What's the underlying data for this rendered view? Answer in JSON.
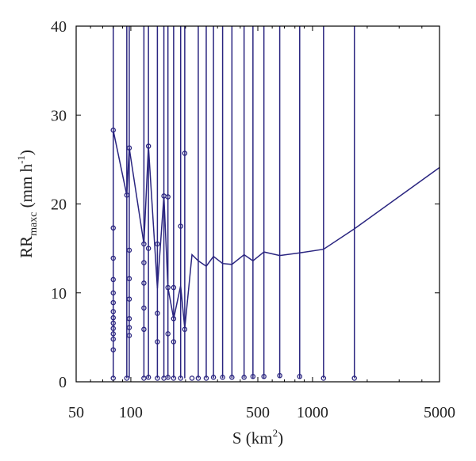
{
  "chart_data": {
    "type": "line",
    "xlabel": "S (km",
    "xlabel_sup": "2",
    "xlabel_end": ")",
    "ylabel": "RR",
    "ylabel_sub": "maxc",
    "ylabel_unit": " (mm h",
    "ylabel_unit_sup": "-1",
    "ylabel_end": ")",
    "x_scale": "log",
    "xlim": [
      50,
      5000
    ],
    "ylim": [
      0,
      40
    ],
    "x_ticks": [
      50,
      100,
      500,
      1000,
      5000
    ],
    "y_ticks": [
      0,
      10,
      20,
      30,
      40
    ],
    "color": "#2a2580",
    "series": [
      {
        "x": [
          80,
          95,
          98,
          118,
          125,
          140,
          152,
          160,
          172,
          188,
          198,
          217,
          235,
          260,
          285,
          320,
          360,
          420,
          470,
          540,
          660,
          850,
          1150,
          1700,
          5000
        ],
        "values": [
          28.3,
          21.0,
          26.3,
          15.5,
          26.5,
          10.5,
          20.9,
          10.6,
          7.1,
          10.8,
          6.0,
          14.3,
          13.6,
          13.0,
          14.1,
          13.3,
          13.2,
          14.3,
          13.6,
          14.6,
          14.2,
          14.5,
          14.9,
          17.2,
          24.1
        ]
      }
    ],
    "vertical_lines_x": [
      80,
      95,
      98,
      118,
      125,
      140,
      152,
      160,
      172,
      188,
      198,
      235,
      260,
      285,
      320,
      360,
      420,
      470,
      540,
      660,
      850,
      1150,
      1700
    ],
    "markers": [
      [
        80,
        28.3
      ],
      [
        80,
        17.3
      ],
      [
        80,
        13.9
      ],
      [
        80,
        11.5
      ],
      [
        80,
        10.0
      ],
      [
        80,
        8.9
      ],
      [
        80,
        7.9
      ],
      [
        80,
        7.2
      ],
      [
        80,
        6.6
      ],
      [
        80,
        6.0
      ],
      [
        80,
        5.4
      ],
      [
        80,
        4.8
      ],
      [
        80,
        3.6
      ],
      [
        80,
        0.4
      ],
      [
        95,
        21.0
      ],
      [
        95,
        0.4
      ],
      [
        98,
        26.3
      ],
      [
        98,
        14.8
      ],
      [
        98,
        11.6
      ],
      [
        98,
        9.3
      ],
      [
        98,
        7.1
      ],
      [
        98,
        6.1
      ],
      [
        98,
        5.2
      ],
      [
        118,
        15.5
      ],
      [
        118,
        13.4
      ],
      [
        118,
        11.1
      ],
      [
        118,
        8.3
      ],
      [
        118,
        5.9
      ],
      [
        118,
        0.4
      ],
      [
        125,
        26.5
      ],
      [
        125,
        15.0
      ],
      [
        125,
        0.5
      ],
      [
        140,
        15.5
      ],
      [
        140,
        7.7
      ],
      [
        140,
        4.5
      ],
      [
        140,
        0.4
      ],
      [
        152,
        20.9
      ],
      [
        152,
        0.4
      ],
      [
        160,
        20.8
      ],
      [
        160,
        10.6
      ],
      [
        160,
        5.4
      ],
      [
        160,
        0.5
      ],
      [
        172,
        10.6
      ],
      [
        172,
        7.1
      ],
      [
        172,
        4.5
      ],
      [
        172,
        0.4
      ],
      [
        188,
        17.5
      ],
      [
        188,
        0.4
      ],
      [
        198,
        25.7
      ],
      [
        198,
        5.9
      ],
      [
        217,
        0.4
      ],
      [
        235,
        0.4
      ],
      [
        260,
        0.4
      ],
      [
        285,
        0.5
      ],
      [
        320,
        0.5
      ],
      [
        360,
        0.5
      ],
      [
        420,
        0.5
      ],
      [
        470,
        0.6
      ],
      [
        540,
        0.6
      ],
      [
        660,
        0.7
      ],
      [
        850,
        0.6
      ],
      [
        1150,
        0.4
      ],
      [
        1700,
        0.4
      ]
    ]
  }
}
